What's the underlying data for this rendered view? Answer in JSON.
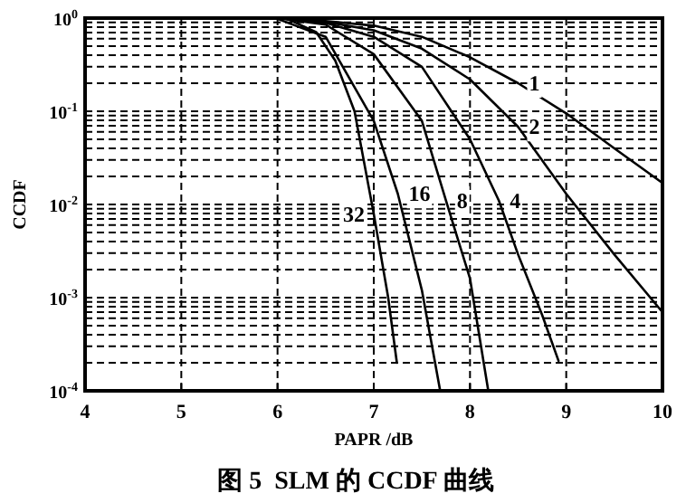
{
  "chart_data": {
    "type": "line",
    "title": "图 5  SLM 的 CCDF 曲线",
    "xlabel": "PAPR /dB",
    "ylabel": "CCDF",
    "log": "y",
    "grid": true,
    "legend": false,
    "marker": "none",
    "line_style": "solid",
    "xlim": [
      4,
      10
    ],
    "xticks": [
      4,
      5,
      6,
      7,
      8,
      9,
      10
    ],
    "ylim": [
      0.0001,
      1
    ],
    "yticks": [
      {
        "value": 0.0001,
        "label": "10$^{-4}$"
      },
      {
        "value": 0.001,
        "label": "10$^{-3}$"
      },
      {
        "value": 0.01,
        "label": "10$^{-2}$"
      },
      {
        "value": 0.1,
        "label": "10$^{-1}$"
      },
      {
        "value": 1,
        "label": "10$^{0}$"
      }
    ],
    "series": [
      {
        "name": "1",
        "color": "#000000",
        "x": [
          6.0,
          6.5,
          7,
          7.5,
          8,
          8.5,
          9,
          9.5,
          10
        ],
        "values": [
          1,
          0.93,
          0.83,
          0.63,
          0.38,
          0.2,
          0.095,
          0.04,
          0.017
        ]
      },
      {
        "name": "2",
        "color": "#000000",
        "x": [
          6.0,
          6.5,
          7,
          7.5,
          8,
          8.5,
          9,
          9.5,
          10
        ],
        "values": [
          1,
          0.91,
          0.74,
          0.47,
          0.22,
          0.068,
          0.013,
          0.0029,
          0.0007
        ]
      },
      {
        "name": "4",
        "color": "#000000",
        "x": [
          6.0,
          6.5,
          7,
          7.5,
          8,
          8.3,
          8.5,
          8.75,
          8.92
        ],
        "values": [
          1,
          0.89,
          0.63,
          0.3,
          0.05,
          0.011,
          0.0029,
          0.00065,
          0.00021
        ]
      },
      {
        "name": "8",
        "color": "#000000",
        "x": [
          6.0,
          6.5,
          7,
          7.5,
          7.75,
          8,
          8.19
        ],
        "values": [
          1,
          0.85,
          0.41,
          0.079,
          0.011,
          0.0016,
          0.0001
        ]
      },
      {
        "name": "16",
        "color": "#000000",
        "x": [
          6.0,
          6.5,
          7,
          7.25,
          7.5,
          7.69
        ],
        "values": [
          0.98,
          0.63,
          0.079,
          0.013,
          0.0012,
          0.0001
        ]
      },
      {
        "name": "32",
        "color": "#000000",
        "x": [
          6.1,
          6.4,
          6.6,
          6.8,
          7.0,
          7.15,
          7.24
        ],
        "values": [
          0.98,
          0.71,
          0.35,
          0.1,
          0.0079,
          0.001,
          0.0002
        ]
      }
    ]
  }
}
